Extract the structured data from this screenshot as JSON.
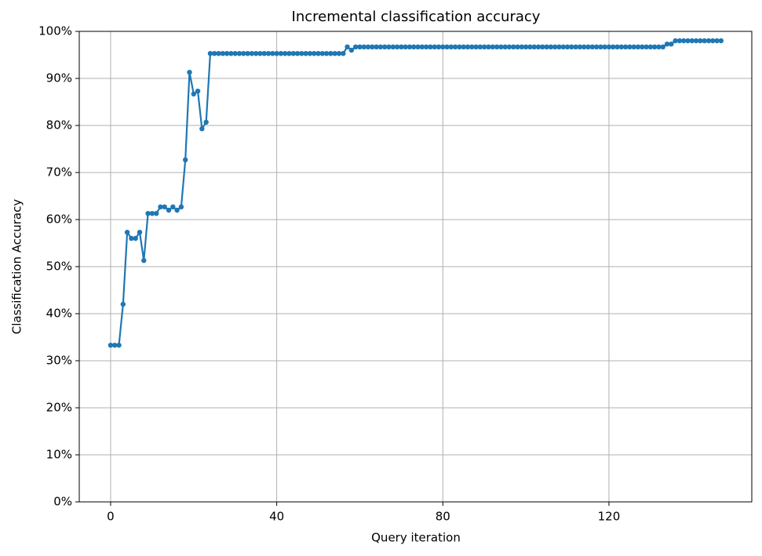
{
  "chart_data": {
    "type": "line",
    "title": "Incremental classification accuracy",
    "x_label": "Query iteration",
    "y_label": "Classification Accuracy",
    "x": [
      0,
      1,
      2,
      3,
      4,
      5,
      6,
      7,
      8,
      9,
      10,
      11,
      12,
      13,
      14,
      15,
      16,
      17,
      18,
      19,
      20,
      21,
      22,
      23,
      24,
      25,
      26,
      27,
      28,
      29,
      30,
      31,
      32,
      33,
      34,
      35,
      36,
      37,
      38,
      39,
      40,
      41,
      42,
      43,
      44,
      45,
      46,
      47,
      48,
      49,
      50,
      51,
      52,
      53,
      54,
      55,
      56,
      57,
      58,
      59,
      60,
      61,
      62,
      63,
      64,
      65,
      66,
      67,
      68,
      69,
      70,
      71,
      72,
      73,
      74,
      75,
      76,
      77,
      78,
      79,
      80,
      81,
      82,
      83,
      84,
      85,
      86,
      87,
      88,
      89,
      90,
      91,
      92,
      93,
      94,
      95,
      96,
      97,
      98,
      99,
      100,
      101,
      102,
      103,
      104,
      105,
      106,
      107,
      108,
      109,
      110,
      111,
      112,
      113,
      114,
      115,
      116,
      117,
      118,
      119,
      120,
      121,
      122,
      123,
      124,
      125,
      126,
      127,
      128,
      129,
      130,
      131,
      132,
      133,
      134,
      135,
      136,
      137,
      138,
      139,
      140,
      141,
      142,
      143,
      144,
      145,
      146,
      147
    ],
    "series": [
      {
        "color": "#1f77b4",
        "values": [
          33.3,
          33.3,
          33.3,
          42,
          57.3,
          56,
          56,
          57.3,
          51.3,
          61.3,
          61.3,
          61.3,
          62.7,
          62.7,
          62,
          62.7,
          62,
          62.7,
          72.7,
          91.3,
          86.7,
          87.3,
          79.3,
          80.7,
          95.3,
          95.3,
          95.3,
          95.3,
          95.3,
          95.3,
          95.3,
          95.3,
          95.3,
          95.3,
          95.3,
          95.3,
          95.3,
          95.3,
          95.3,
          95.3,
          95.3,
          95.3,
          95.3,
          95.3,
          95.3,
          95.3,
          95.3,
          95.3,
          95.3,
          95.3,
          95.3,
          95.3,
          95.3,
          95.3,
          95.3,
          95.3,
          95.3,
          96.7,
          96,
          96.7,
          96.7,
          96.7,
          96.7,
          96.7,
          96.7,
          96.7,
          96.7,
          96.7,
          96.7,
          96.7,
          96.7,
          96.7,
          96.7,
          96.7,
          96.7,
          96.7,
          96.7,
          96.7,
          96.7,
          96.7,
          96.7,
          96.7,
          96.7,
          96.7,
          96.7,
          96.7,
          96.7,
          96.7,
          96.7,
          96.7,
          96.7,
          96.7,
          96.7,
          96.7,
          96.7,
          96.7,
          96.7,
          96.7,
          96.7,
          96.7,
          96.7,
          96.7,
          96.7,
          96.7,
          96.7,
          96.7,
          96.7,
          96.7,
          96.7,
          96.7,
          96.7,
          96.7,
          96.7,
          96.7,
          96.7,
          96.7,
          96.7,
          96.7,
          96.7,
          96.7,
          96.7,
          96.7,
          96.7,
          96.7,
          96.7,
          96.7,
          96.7,
          96.7,
          96.7,
          96.7,
          96.7,
          96.7,
          96.7,
          96.7,
          97.3,
          97.3,
          98,
          98,
          98,
          98,
          98,
          98,
          98,
          98,
          98,
          98,
          98,
          98
        ]
      }
    ],
    "xlim": [
      -7.55,
      154.4
    ],
    "ylim": [
      0,
      100
    ],
    "xticks": [
      0,
      40,
      80,
      120
    ],
    "yticks": [
      {
        "value": 0,
        "label": "0%"
      },
      {
        "value": 10,
        "label": "10%"
      },
      {
        "value": 20,
        "label": "20%"
      },
      {
        "value": 30,
        "label": "30%"
      },
      {
        "value": 40,
        "label": "40%"
      },
      {
        "value": 50,
        "label": "50%"
      },
      {
        "value": 60,
        "label": "60%"
      },
      {
        "value": 70,
        "label": "70%"
      },
      {
        "value": 80,
        "label": "80%"
      },
      {
        "value": 90,
        "label": "90%"
      },
      {
        "value": 100,
        "label": "100%"
      }
    ],
    "grid": true,
    "markers": true
  }
}
